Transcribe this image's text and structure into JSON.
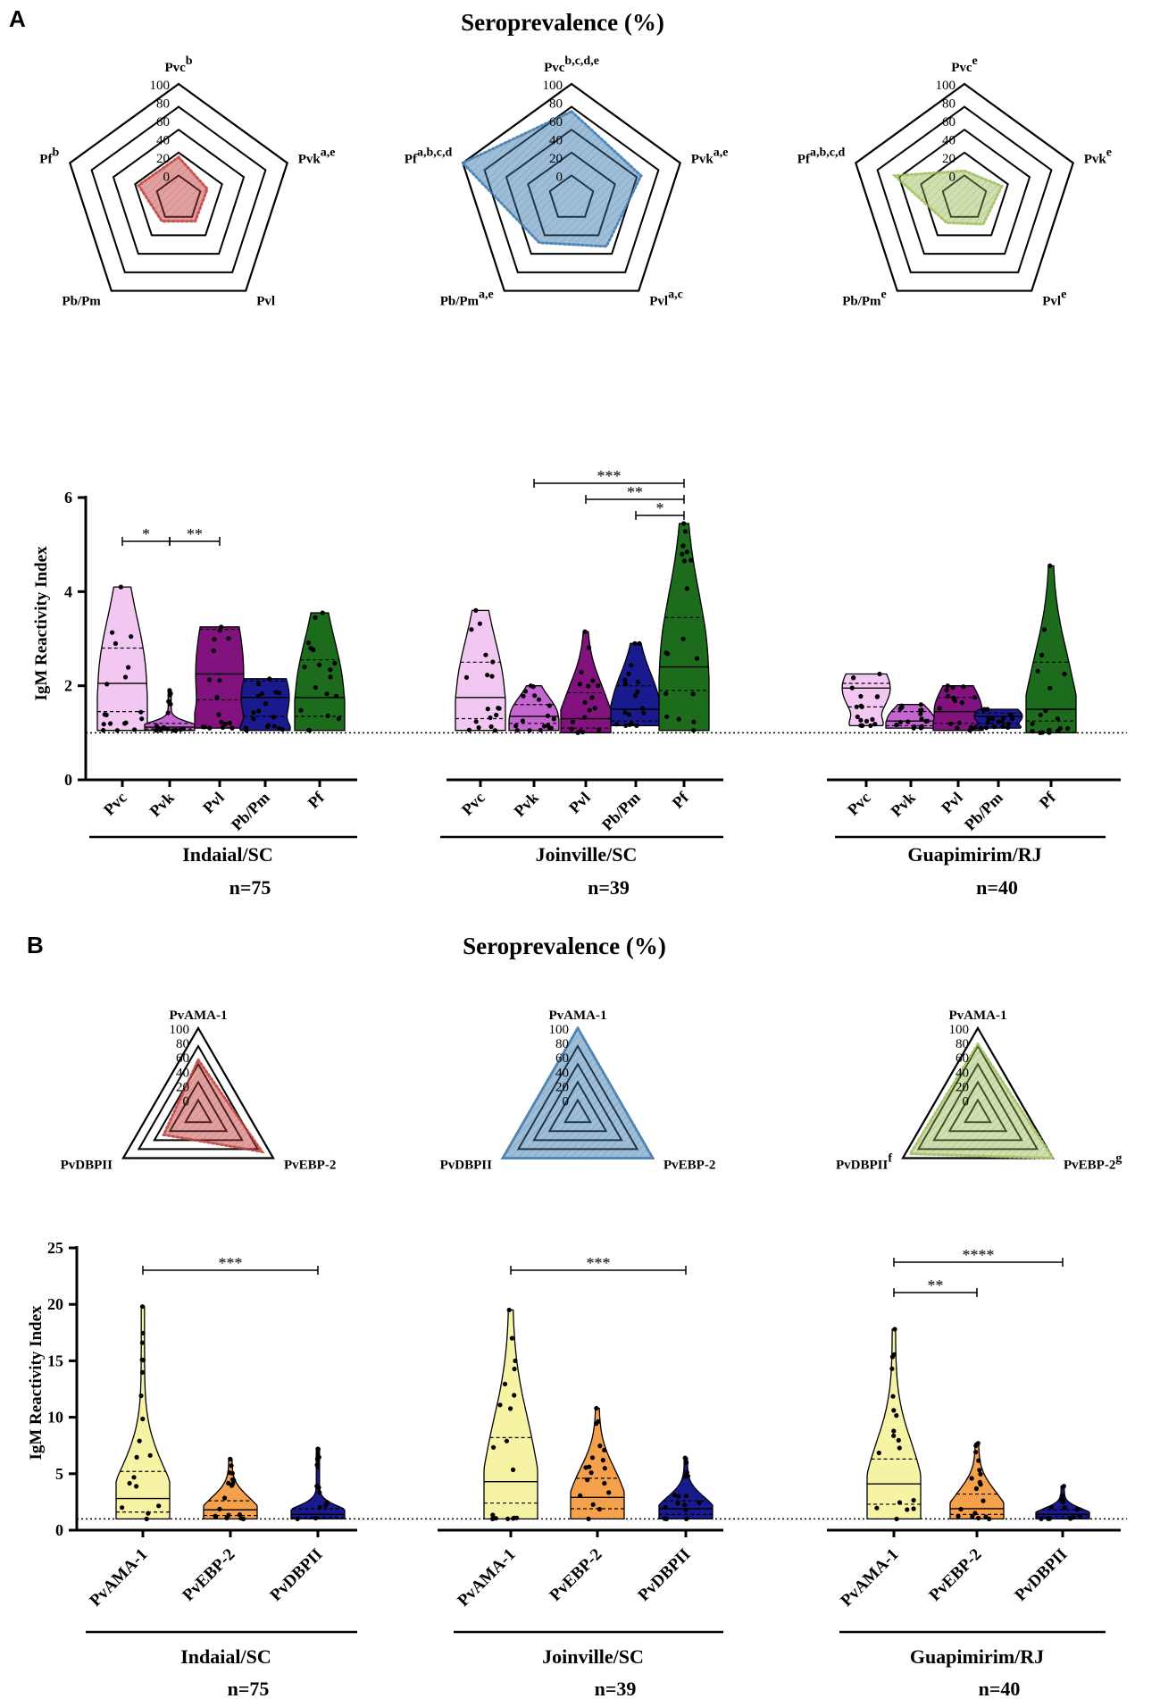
{
  "panels": [
    {
      "letter": "A",
      "title": "Seroprevalence (%)",
      "ylabel": "IgM Reactivity Index",
      "radar_ticks": [
        "0",
        "20",
        "40",
        "60",
        "80",
        "100"
      ],
      "cutoff": 1,
      "ylim": [
        0,
        6
      ],
      "yticks": [
        "0",
        "2",
        "4",
        "6"
      ],
      "groups": [
        {
          "site": "Indaial/SC",
          "n": "n=75",
          "axes": [
            {
              "label": "Pvc",
              "sup": "b"
            },
            {
              "label": "Pvk",
              "sup": "a,e"
            },
            {
              "label": "Pvl",
              "sup": ""
            },
            {
              "label": "Pb/Pm",
              "sup": ""
            },
            {
              "label": "Pf",
              "sup": "b"
            }
          ],
          "seroprevalence": [
            20,
            8,
            6,
            6,
            21
          ],
          "color": "#c9514e",
          "violins": [
            {
              "antigen": "Pvc",
              "min": 1.05,
              "max": 4.1,
              "median": 2.05,
              "q1": 1.45,
              "q3": 2.8,
              "color": "#f2c7f2"
            },
            {
              "antigen": "Pvk",
              "min": 1.05,
              "max": 1.9,
              "median": 1.12,
              "q1": 1.08,
              "q3": 1.2,
              "color": "#c565d0"
            },
            {
              "antigen": "Pvl",
              "min": 1.1,
              "max": 3.25,
              "median": 2.25,
              "q1": 1.7,
              "q3": 3.2,
              "color": "#82127e"
            },
            {
              "antigen": "Pb/Pm",
              "min": 1.05,
              "max": 2.15,
              "median": 1.75,
              "q1": 1.35,
              "q3": 2.1,
              "color": "#1a1a8f"
            },
            {
              "antigen": "Pf",
              "min": 1.05,
              "max": 3.55,
              "median": 1.75,
              "q1": 1.35,
              "q3": 2.55,
              "color": "#1d6b1d"
            }
          ],
          "significance": [
            {
              "from": 0,
              "to": 1,
              "label": "*",
              "level": 0
            },
            {
              "from": 1,
              "to": 2,
              "label": "**",
              "level": 0
            }
          ]
        },
        {
          "site": "Joinville/SC",
          "n": "n=39",
          "axes": [
            {
              "label": "Pvc",
              "sup": "b,c,d,e"
            },
            {
              "label": "Pvk",
              "sup": "a,e"
            },
            {
              "label": "Pvl",
              "sup": "a,c"
            },
            {
              "label": "Pb/Pm",
              "sup": "a,e"
            },
            {
              "label": "Pf",
              "sup": "a,b,c,d"
            }
          ],
          "seroprevalence": [
            70,
            55,
            40,
            35,
            100
          ],
          "color": "#4f87b8",
          "violins": [
            {
              "antigen": "Pvc",
              "min": 1.05,
              "max": 3.6,
              "median": 1.75,
              "q1": 1.3,
              "q3": 2.5,
              "color": "#f2c7f2"
            },
            {
              "antigen": "Pvk",
              "min": 1.05,
              "max": 2.0,
              "median": 1.35,
              "q1": 1.2,
              "q3": 1.6,
              "color": "#c565d0"
            },
            {
              "antigen": "Pvl",
              "min": 1.0,
              "max": 3.15,
              "median": 1.3,
              "q1": 1.1,
              "q3": 1.85,
              "color": "#82127e"
            },
            {
              "antigen": "Pb/Pm",
              "min": 1.15,
              "max": 2.9,
              "median": 1.5,
              "q1": 1.25,
              "q3": 2.0,
              "color": "#1a1a8f"
            },
            {
              "antigen": "Pf",
              "min": 1.05,
              "max": 5.45,
              "median": 2.4,
              "q1": 1.9,
              "q3": 3.45,
              "color": "#1d6b1d"
            }
          ],
          "significance": [
            {
              "from": 1,
              "to": 4,
              "label": "***",
              "level": 2
            },
            {
              "from": 2,
              "to": 4,
              "label": "**",
              "level": 1
            },
            {
              "from": 3,
              "to": 4,
              "label": "*",
              "level": 0
            }
          ]
        },
        {
          "site": "Guapimirim/RJ",
          "n": "n=40",
          "axes": [
            {
              "label": "Pvc",
              "sup": "e"
            },
            {
              "label": "Pvk",
              "sup": "e"
            },
            {
              "label": "Pvl",
              "sup": "e"
            },
            {
              "label": "Pb/Pm",
              "sup": "e"
            },
            {
              "label": "Pf",
              "sup": "a,b,c,d"
            }
          ],
          "seroprevalence": [
            5,
            18,
            10,
            8,
            55
          ],
          "color": "#a8c66c",
          "violins": [
            {
              "antigen": "Pvc",
              "min": 1.15,
              "max": 2.25,
              "median": 1.95,
              "q1": 1.55,
              "q3": 2.05,
              "color": "#f2c7f2"
            },
            {
              "antigen": "Pvk",
              "min": 1.1,
              "max": 1.6,
              "median": 1.25,
              "q1": 1.15,
              "q3": 1.45,
              "color": "#c565d0"
            },
            {
              "antigen": "Pvl",
              "min": 1.05,
              "max": 2.0,
              "median": 1.45,
              "q1": 1.2,
              "q3": 1.75,
              "color": "#82127e"
            },
            {
              "antigen": "Pb/Pm",
              "min": 1.1,
              "max": 1.5,
              "median": 1.35,
              "q1": 1.2,
              "q3": 1.42,
              "color": "#1a1a8f"
            },
            {
              "antigen": "Pf",
              "min": 1.0,
              "max": 4.55,
              "median": 1.5,
              "q1": 1.25,
              "q3": 2.5,
              "color": "#1d6b1d"
            }
          ],
          "significance": []
        }
      ]
    },
    {
      "letter": "B",
      "title": "Seroprevalence (%)",
      "ylabel": "IgM Reactivity Index",
      "radar_ticks": [
        "0",
        "20",
        "40",
        "60",
        "80",
        "100"
      ],
      "cutoff": 1,
      "ylim": [
        0,
        25
      ],
      "yticks": [
        "0",
        "5",
        "10",
        "15",
        "20",
        "25"
      ],
      "groups": [
        {
          "site": "Indaial/SC",
          "n": "n=75",
          "axes": [
            {
              "label": "PvAMA-1",
              "sup": ""
            },
            {
              "label": "PvEBP-2",
              "sup": ""
            },
            {
              "label": "PvDBPII",
              "sup": ""
            }
          ],
          "seroprevalence": [
            56,
            82,
            35
          ],
          "color": "#c9514e",
          "violins": [
            {
              "antigen": "PvAMA-1",
              "min": 1.0,
              "max": 19.8,
              "median": 2.8,
              "q1": 1.6,
              "q3": 5.2,
              "color": "#f7f3a4"
            },
            {
              "antigen": "PvEBP-2",
              "min": 1.0,
              "max": 6.3,
              "median": 1.8,
              "q1": 1.3,
              "q3": 2.6,
              "color": "#f5a04a"
            },
            {
              "antigen": "PvDBPII",
              "min": 1.0,
              "max": 7.2,
              "median": 1.4,
              "q1": 1.15,
              "q3": 1.9,
              "color": "#1a1a8f"
            }
          ],
          "significance": [
            {
              "from": 0,
              "to": 2,
              "label": "***",
              "level": 0
            }
          ]
        },
        {
          "site": "Joinville/SC",
          "n": "n=39",
          "axes": [
            {
              "label": "PvAMA-1",
              "sup": ""
            },
            {
              "label": "PvEBP-2",
              "sup": ""
            },
            {
              "label": "PvDBPII",
              "sup": ""
            }
          ],
          "seroprevalence": [
            100,
            100,
            100
          ],
          "color": "#4f87b8",
          "violins": [
            {
              "antigen": "PvAMA-1",
              "min": 1.0,
              "max": 19.5,
              "median": 4.3,
              "q1": 2.4,
              "q3": 8.2,
              "color": "#f7f3a4"
            },
            {
              "antigen": "PvEBP-2",
              "min": 1.0,
              "max": 10.8,
              "median": 2.9,
              "q1": 1.9,
              "q3": 4.6,
              "color": "#f5a04a"
            },
            {
              "antigen": "PvDBPII",
              "min": 1.0,
              "max": 6.4,
              "median": 1.9,
              "q1": 1.4,
              "q3": 2.6,
              "color": "#1a1a8f"
            }
          ],
          "significance": [
            {
              "from": 0,
              "to": 2,
              "label": "***",
              "level": 0
            }
          ]
        },
        {
          "site": "Guapimirim/RJ",
          "n": "n=40",
          "axes": [
            {
              "label": "PvAMA-1",
              "sup": ""
            },
            {
              "label": "PvEBP-2",
              "sup": "g"
            },
            {
              "label": "PvDBPII",
              "sup": "f"
            }
          ],
          "seroprevalence": [
            78,
            100,
            88
          ],
          "color": "#a8c66c",
          "violins": [
            {
              "antigen": "PvAMA-1",
              "min": 1.0,
              "max": 17.8,
              "median": 4.1,
              "q1": 2.3,
              "q3": 6.3,
              "color": "#f7f3a4"
            },
            {
              "antigen": "PvEBP-2",
              "min": 1.0,
              "max": 7.7,
              "median": 1.9,
              "q1": 1.4,
              "q3": 3.2,
              "color": "#f5a04a"
            },
            {
              "antigen": "PvDBPII",
              "min": 1.0,
              "max": 3.9,
              "median": 1.4,
              "q1": 1.2,
              "q3": 1.8,
              "color": "#1a1a8f"
            }
          ],
          "significance": [
            {
              "from": 0,
              "to": 1,
              "label": "**",
              "level": 0
            },
            {
              "from": 0,
              "to": 2,
              "label": "****",
              "level": 1
            }
          ]
        }
      ]
    }
  ],
  "chart_data": [
    {
      "type": "radar",
      "title": "Seroprevalence (%)",
      "panel": "A",
      "axes": [
        "Pvc",
        "Pvk",
        "Pvl",
        "Pb/Pm",
        "Pf"
      ],
      "range": [
        0,
        100
      ],
      "series": [
        {
          "name": "Indaial/SC",
          "values": [
            20,
            8,
            6,
            6,
            21
          ]
        },
        {
          "name": "Joinville/SC",
          "values": [
            70,
            55,
            40,
            35,
            100
          ]
        },
        {
          "name": "Guapimirim/RJ",
          "values": [
            5,
            18,
            10,
            8,
            55
          ]
        }
      ]
    },
    {
      "type": "violin",
      "panel": "A",
      "ylabel": "IgM Reactivity Index",
      "ylim": [
        0,
        6
      ],
      "categories": [
        "Pvc",
        "Pvk",
        "Pvl",
        "Pb/Pm",
        "Pf"
      ],
      "groups": [
        "Indaial/SC n=75",
        "Joinville/SC n=39",
        "Guapimirim/RJ n=40"
      ]
    },
    {
      "type": "radar",
      "title": "Seroprevalence (%)",
      "panel": "B",
      "axes": [
        "PvAMA-1",
        "PvEBP-2",
        "PvDBPII"
      ],
      "range": [
        0,
        100
      ],
      "series": [
        {
          "name": "Indaial/SC",
          "values": [
            56,
            82,
            35
          ]
        },
        {
          "name": "Joinville/SC",
          "values": [
            100,
            100,
            100
          ]
        },
        {
          "name": "Guapimirim/RJ",
          "values": [
            78,
            100,
            88
          ]
        }
      ]
    },
    {
      "type": "violin",
      "panel": "B",
      "ylabel": "IgM Reactivity Index",
      "ylim": [
        0,
        25
      ],
      "categories": [
        "PvAMA-1",
        "PvEBP-2",
        "PvDBPII"
      ],
      "groups": [
        "Indaial/SC n=75",
        "Joinville/SC n=39",
        "Guapimirim/RJ n=40"
      ]
    }
  ]
}
